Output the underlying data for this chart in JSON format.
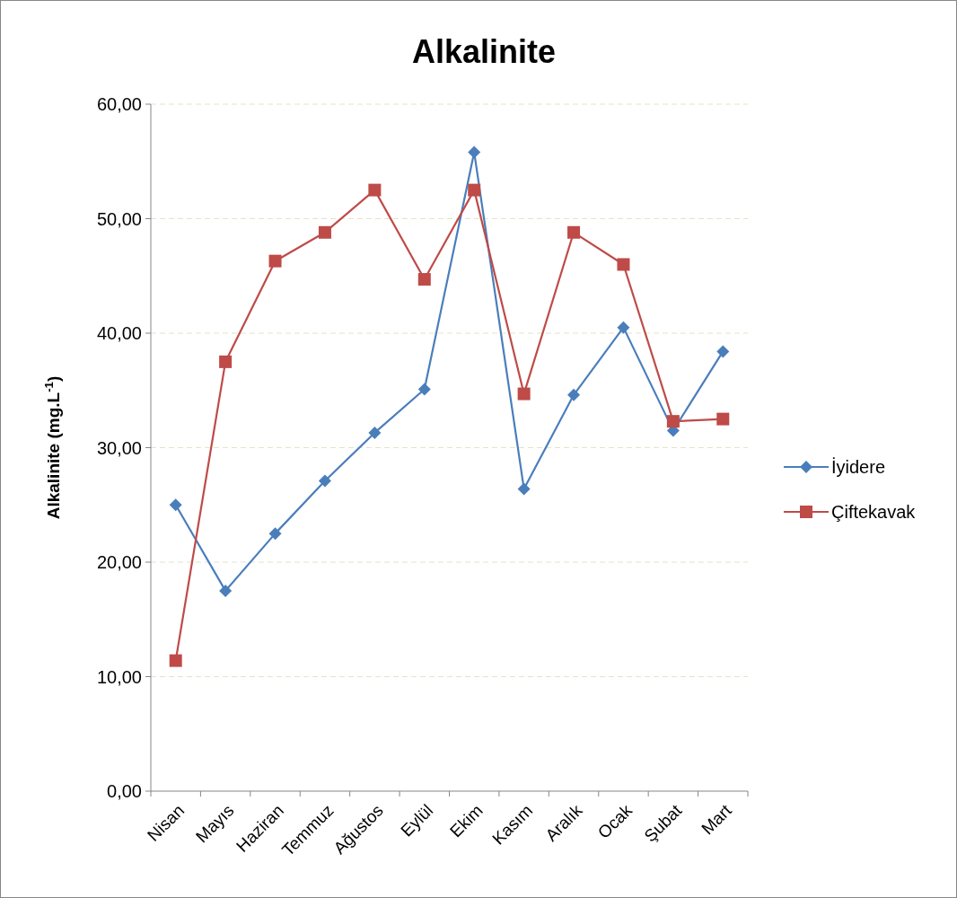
{
  "chart_data": {
    "type": "line",
    "title": "Alkalinite",
    "ylabel": "Alkalinite (mg.L$^{-1}$)",
    "categories": [
      "Nisan",
      "Mayıs",
      "Haziran",
      "Temmuz",
      "Ağustos",
      "Eylül",
      "Ekim",
      "Kasım",
      "Aralık",
      "Ocak",
      "Şubat",
      "Mart"
    ],
    "series": [
      {
        "name": "İyidere",
        "color": "#4a7ebb",
        "marker": "diamond",
        "values": [
          25.0,
          17.5,
          22.5,
          27.1,
          31.3,
          35.1,
          55.8,
          26.4,
          34.6,
          40.5,
          31.5,
          38.4
        ]
      },
      {
        "name": "Çiftekavak",
        "color": "#be4b48",
        "marker": "square",
        "values": [
          11.4,
          37.5,
          46.3,
          48.8,
          52.5,
          44.7,
          52.5,
          34.7,
          48.8,
          46.0,
          32.3,
          32.5
        ]
      }
    ],
    "ylim": [
      0,
      60
    ],
    "yticks": [
      {
        "value": 0,
        "label": "0,00"
      },
      {
        "value": 10,
        "label": "10,00"
      },
      {
        "value": 20,
        "label": "20,00"
      },
      {
        "value": 30,
        "label": "30,00"
      },
      {
        "value": 40,
        "label": "40,00"
      },
      {
        "value": 50,
        "label": "50,00"
      },
      {
        "value": 60,
        "label": "60,00"
      }
    ],
    "grid": "y",
    "legend": "right",
    "line_style": "solid"
  }
}
